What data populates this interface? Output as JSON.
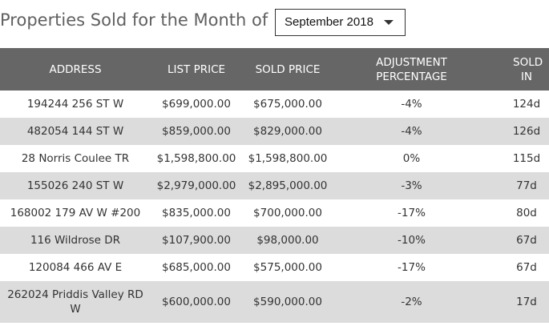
{
  "header": {
    "title": "Properties Sold for the Month of",
    "month_select": {
      "value": "September 2018"
    }
  },
  "table": {
    "columns": [
      "ADDRESS",
      "LIST PRICE",
      "SOLD PRICE",
      "ADJUSTMENT PERCENTAGE",
      "SOLD IN"
    ],
    "rows": [
      {
        "address": "194244 256 ST W",
        "list_price": "$699,000.00",
        "sold_price": "$675,000.00",
        "adjustment": "-4%",
        "sold_in": "124d"
      },
      {
        "address": "482054 144 ST W",
        "list_price": "$859,000.00",
        "sold_price": "$829,000.00",
        "adjustment": "-4%",
        "sold_in": "126d"
      },
      {
        "address": "28 Norris Coulee TR",
        "list_price": "$1,598,800.00",
        "sold_price": "$1,598,800.00",
        "adjustment": "0%",
        "sold_in": "115d"
      },
      {
        "address": "155026 240 ST W",
        "list_price": "$2,979,000.00",
        "sold_price": "$2,895,000.00",
        "adjustment": "-3%",
        "sold_in": "77d"
      },
      {
        "address": "168002 179 AV W #200",
        "list_price": "$835,000.00",
        "sold_price": "$700,000.00",
        "adjustment": "-17%",
        "sold_in": "80d"
      },
      {
        "address": "116 Wildrose DR",
        "list_price": "$107,900.00",
        "sold_price": "$98,000.00",
        "adjustment": "-10%",
        "sold_in": "67d"
      },
      {
        "address": "120084 466 AV E",
        "list_price": "$685,000.00",
        "sold_price": "$575,000.00",
        "adjustment": "-17%",
        "sold_in": "67d"
      },
      {
        "address": "262024 Priddis Valley RD W",
        "list_price": "$600,000.00",
        "sold_price": "$590,000.00",
        "adjustment": "-2%",
        "sold_in": "17d"
      }
    ]
  }
}
